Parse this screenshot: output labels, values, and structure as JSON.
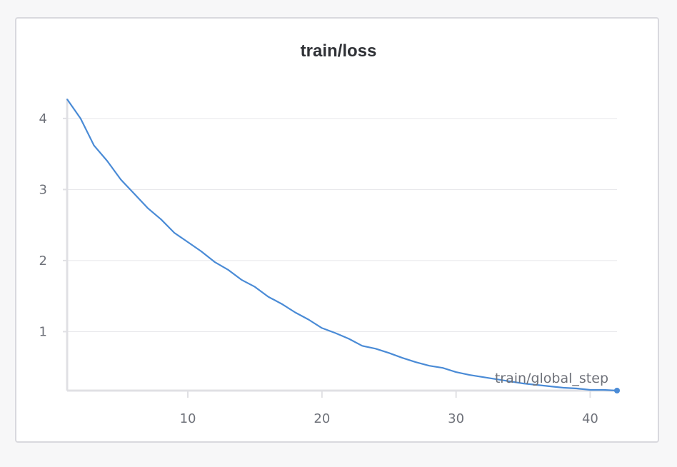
{
  "chart_data": {
    "type": "line",
    "title": "train/loss",
    "xlabel": "train/global_step",
    "ylabel": "",
    "xlim": [
      1,
      42
    ],
    "ylim": [
      0.17,
      4.28
    ],
    "x_ticks": [
      10,
      20,
      30,
      40
    ],
    "y_ticks": [
      1,
      2,
      3,
      4
    ],
    "grid": true,
    "legend": "none",
    "series": [
      {
        "color": "#4a8bd6",
        "x": [
          1,
          2,
          3,
          4,
          5,
          6,
          7,
          8,
          9,
          10,
          11,
          12,
          13,
          14,
          15,
          16,
          17,
          18,
          19,
          20,
          21,
          22,
          23,
          24,
          25,
          26,
          27,
          28,
          29,
          30,
          31,
          32,
          33,
          34,
          35,
          36,
          37,
          38,
          39,
          40,
          41,
          42
        ],
        "y": [
          4.27,
          4.0,
          3.62,
          3.4,
          3.14,
          2.94,
          2.74,
          2.58,
          2.39,
          2.26,
          2.13,
          1.98,
          1.87,
          1.73,
          1.63,
          1.49,
          1.39,
          1.27,
          1.17,
          1.05,
          0.98,
          0.9,
          0.8,
          0.76,
          0.7,
          0.63,
          0.57,
          0.52,
          0.49,
          0.43,
          0.39,
          0.36,
          0.33,
          0.3,
          0.27,
          0.25,
          0.23,
          0.21,
          0.2,
          0.18,
          0.18,
          0.17
        ]
      }
    ]
  },
  "colors": {
    "line": "#4a8bd6",
    "grid": "#e6e6ea",
    "axis": "#e0e0e4",
    "text": "#6f727a",
    "title": "#2f3136"
  }
}
